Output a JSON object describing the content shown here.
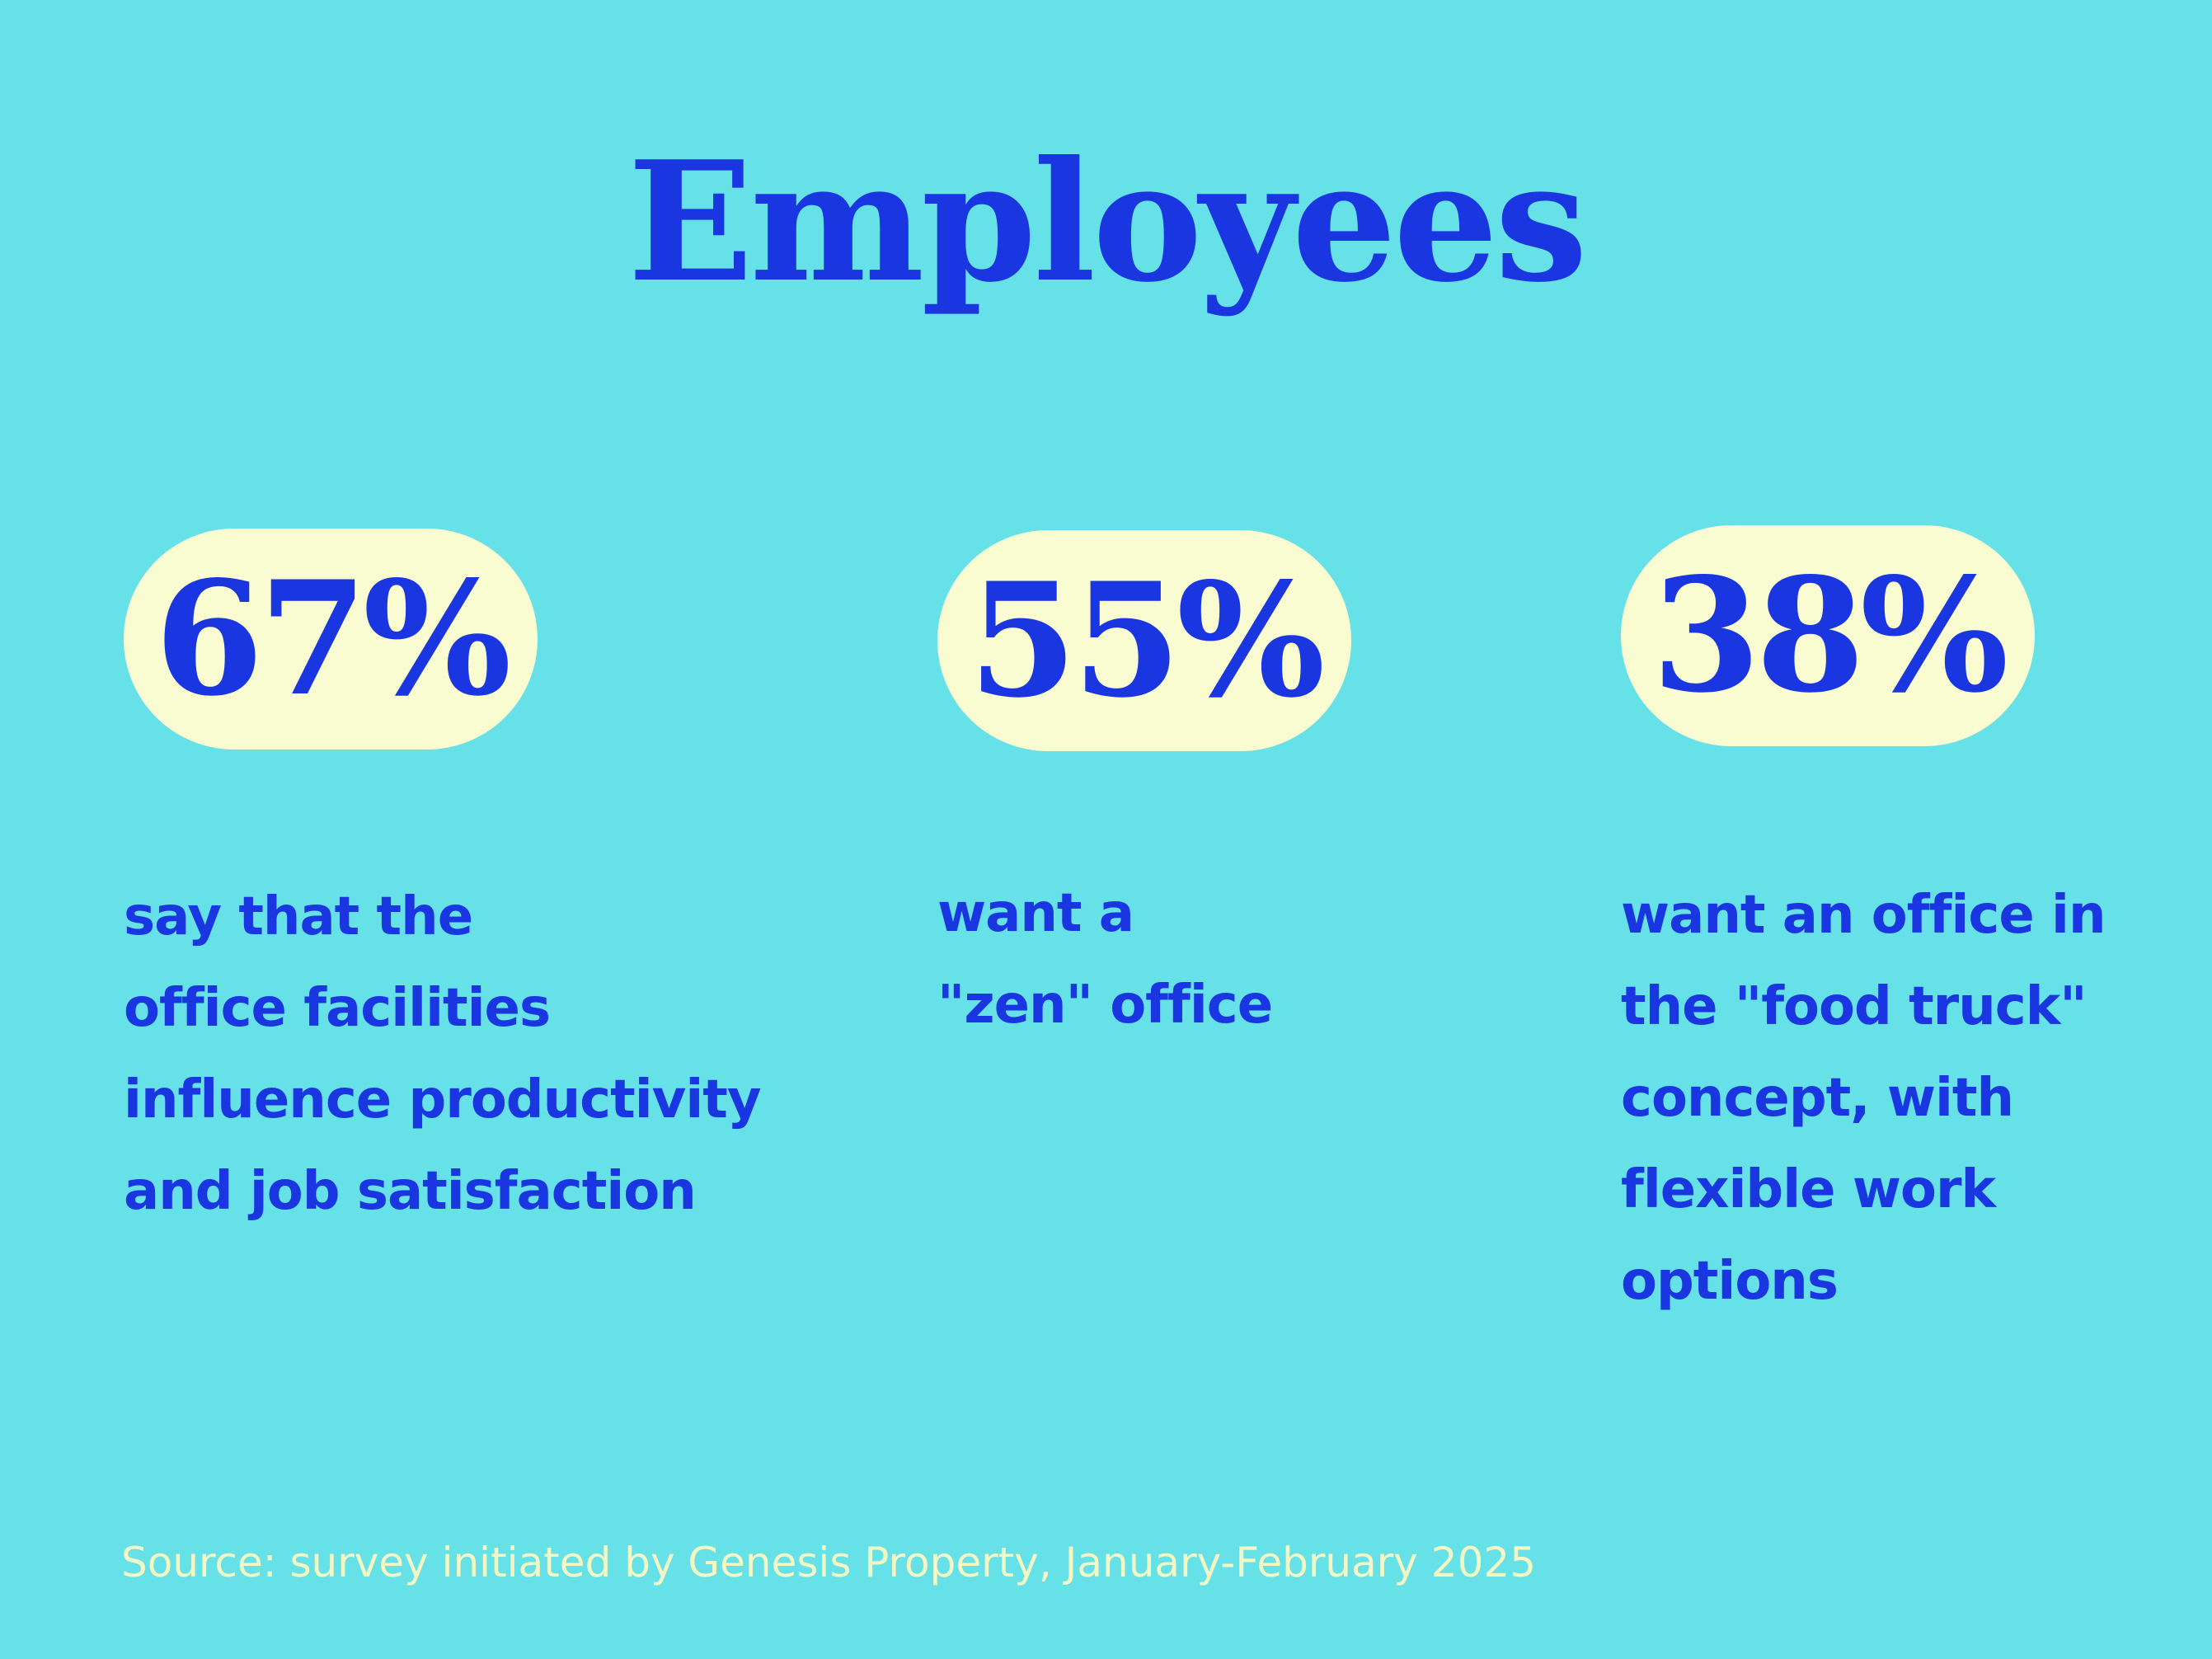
{
  "title": "Employees",
  "stats": [
    {
      "value": "67%",
      "text": "say that the\noffice facilities\ninfluence productivity\nand job satisfaction"
    },
    {
      "value": "55%",
      "text": "want a\n\"zen\" office"
    },
    {
      "value": "38%",
      "text": "want an office in\nthe \"food truck\"\nconcept, with\nflexible work\noptions"
    }
  ],
  "source": "Source: survey initiated by Genesis Property, January-February 2025",
  "colors": {
    "background": "#67e1e8",
    "accent": "#1a36e0",
    "pill": "#f9fbd0",
    "source_text": "#f3f7c4"
  }
}
